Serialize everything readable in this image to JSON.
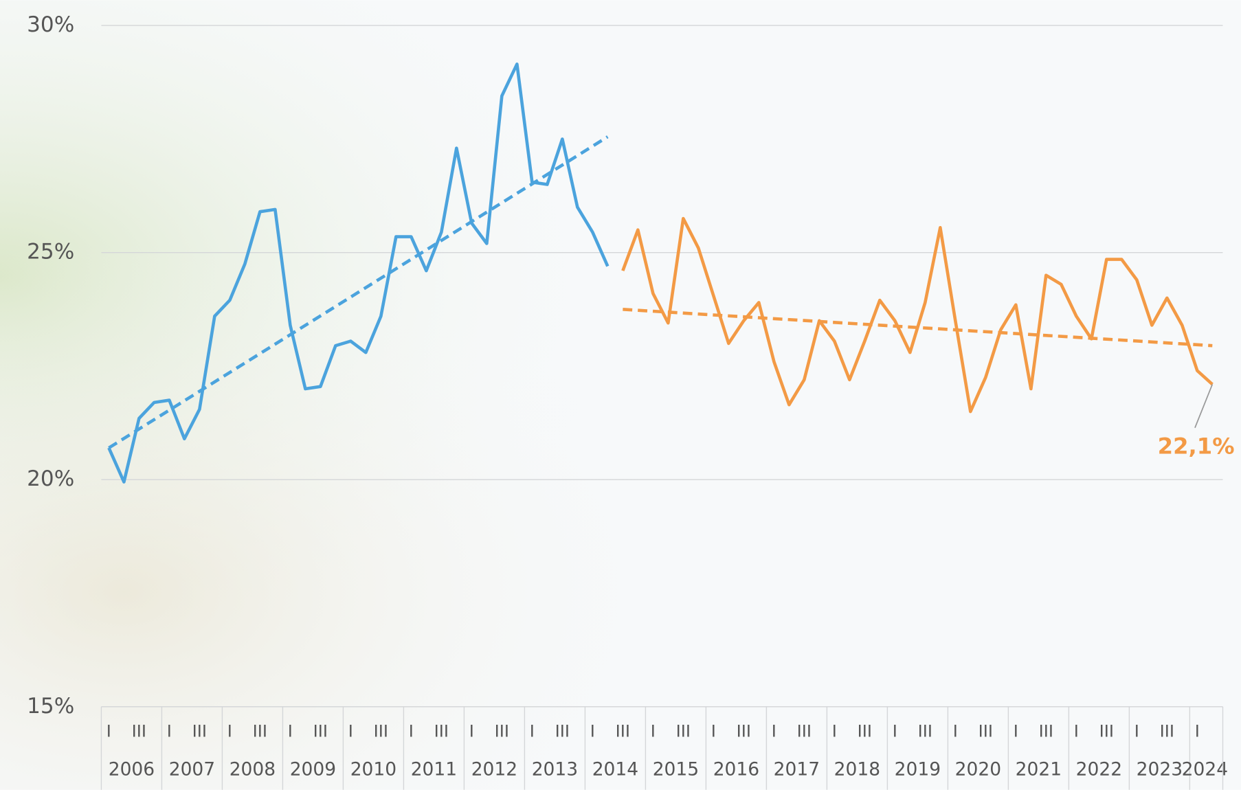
{
  "chart_data": {
    "type": "line",
    "categories": [
      "I",
      null,
      "III",
      null,
      "I",
      null,
      "III",
      null,
      "I",
      null,
      "III",
      null,
      "I",
      null,
      "III",
      null,
      "I",
      null,
      "III",
      null,
      "I",
      null,
      "III",
      null,
      "I",
      null,
      "III",
      null,
      "I",
      null,
      "III",
      null,
      "I",
      null,
      "III",
      null,
      "I",
      null,
      "III",
      null,
      "I",
      null,
      "III",
      null,
      "I",
      null,
      "III",
      null,
      "I",
      null,
      "III",
      null,
      "I",
      null,
      "III",
      null,
      "I",
      null,
      "III",
      null,
      "I",
      null,
      "III",
      null,
      "I",
      null,
      "III",
      null,
      "I",
      null,
      "III",
      null,
      "I",
      null
    ],
    "years": [
      "2006",
      "2007",
      "2008",
      "2009",
      "2010",
      "2011",
      "2012",
      "2013",
      "2014",
      "2015",
      "2016",
      "2017",
      "2018",
      "2019",
      "2020",
      "2021",
      "2022",
      "2023",
      "2024"
    ],
    "series": [
      {
        "color": "#4ba3dd",
        "trend": [
          20.7,
          27.55
        ],
        "values": [
          20.7,
          19.95,
          21.35,
          21.7,
          21.75,
          20.9,
          21.55,
          23.6,
          23.95,
          24.75,
          25.9,
          25.95,
          23.4,
          22.0,
          22.05,
          22.95,
          23.05,
          22.8,
          23.6,
          25.35,
          25.35,
          24.6,
          25.45,
          27.3,
          25.65,
          25.2,
          28.45,
          29.15,
          26.55,
          26.5,
          27.5,
          26.0,
          25.45,
          24.7,
          null,
          null,
          null,
          null,
          null,
          null,
          null,
          null,
          null,
          null,
          null,
          null,
          null,
          null,
          null,
          null,
          null,
          null,
          null,
          null,
          null,
          null,
          null,
          null,
          null,
          null,
          null,
          null,
          null,
          null,
          null,
          null,
          null,
          null,
          null,
          null,
          null,
          null,
          null,
          null
        ]
      },
      {
        "color": "#f39a45",
        "trend": [
          23.75,
          22.95
        ],
        "values": [
          null,
          null,
          null,
          null,
          null,
          null,
          null,
          null,
          null,
          null,
          null,
          null,
          null,
          null,
          null,
          null,
          null,
          null,
          null,
          null,
          null,
          null,
          null,
          null,
          null,
          null,
          null,
          null,
          null,
          null,
          null,
          null,
          null,
          null,
          24.6,
          25.5,
          24.1,
          23.45,
          25.75,
          25.1,
          24.05,
          23.0,
          23.5,
          23.9,
          22.6,
          21.65,
          22.2,
          23.5,
          23.05,
          22.2,
          23.05,
          23.95,
          23.5,
          22.8,
          23.9,
          25.55,
          23.5,
          21.5,
          22.25,
          23.3,
          23.85,
          22.0,
          24.5,
          24.3,
          23.6,
          23.1,
          24.85,
          24.85,
          24.4,
          23.4,
          24.0,
          23.4,
          22.4,
          22.1
        ],
        "value_labels": [
          null,
          null,
          null,
          null,
          null,
          null,
          null,
          null,
          null,
          null,
          null,
          null,
          null,
          null,
          null,
          null,
          null,
          null,
          null,
          null,
          null,
          null,
          null,
          null,
          null,
          null,
          null,
          null,
          null,
          null,
          null,
          null,
          null,
          null,
          null,
          null,
          null,
          null,
          null,
          null,
          null,
          null,
          null,
          null,
          null,
          null,
          null,
          null,
          null,
          null,
          null,
          null,
          null,
          null,
          null,
          null,
          null,
          null,
          null,
          null,
          null,
          null,
          null,
          null,
          null,
          null,
          null,
          null,
          null,
          null,
          null,
          null,
          null,
          "22,1%"
        ]
      }
    ],
    "ylim": [
      15,
      30
    ],
    "yticks": [
      {
        "value": 15,
        "label": "15%"
      },
      {
        "value": 20,
        "label": "20%"
      },
      {
        "value": 25,
        "label": "25%"
      },
      {
        "value": 30,
        "label": "30%"
      }
    ],
    "grid": true
  }
}
